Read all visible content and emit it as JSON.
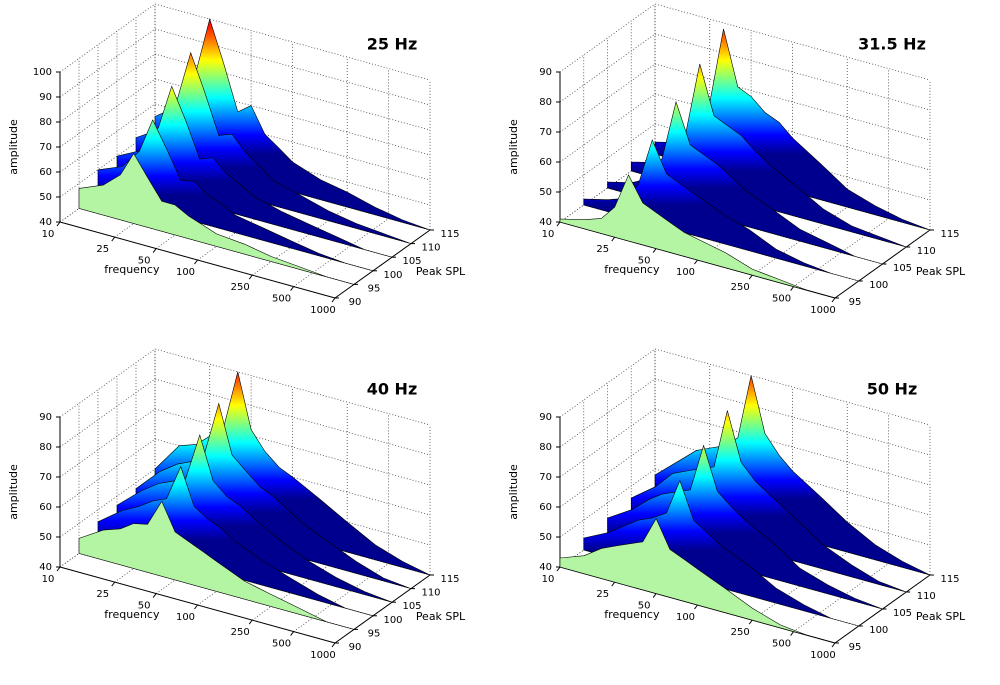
{
  "chart_data": [
    {
      "type": "waterfall",
      "title": "25 Hz",
      "xlabel": "frequency",
      "ylabel": "Peak SPL",
      "zlabel": "amplitude",
      "xscale": "log",
      "xlim": [
        10,
        1000
      ],
      "xticks": [
        10,
        25,
        50,
        100,
        250,
        500,
        1000
      ],
      "ylim": [
        90,
        115
      ],
      "yticks": [
        90,
        95,
        100,
        105,
        110,
        115
      ],
      "zlim": [
        40,
        100
      ],
      "zticks": [
        40,
        50,
        60,
        70,
        80,
        90,
        100
      ],
      "grid": true,
      "front_color": "#b3f5a3",
      "x": [
        10,
        15,
        20,
        25,
        31.5,
        40,
        50,
        63,
        80,
        100,
        160,
        250,
        400,
        630,
        1000
      ],
      "slices": [
        {
          "spl": 115,
          "values": [
            55,
            62,
            78,
            100,
            84,
            66,
            70,
            60,
            56,
            52,
            48,
            46,
            43,
            41,
            40
          ]
        },
        {
          "spl": 110,
          "values": [
            52,
            58,
            72,
            92,
            78,
            62,
            64,
            58,
            54,
            50,
            47,
            44,
            42,
            41,
            40
          ]
        },
        {
          "spl": 105,
          "values": [
            50,
            55,
            66,
            84,
            72,
            58,
            60,
            55,
            52,
            49,
            46,
            44,
            42,
            40,
            40
          ]
        },
        {
          "spl": 100,
          "values": [
            50,
            54,
            62,
            76,
            66,
            55,
            56,
            52,
            50,
            47,
            45,
            43,
            41,
            40,
            40
          ]
        },
        {
          "spl": 95,
          "values": [
            48,
            52,
            58,
            68,
            60,
            52,
            52,
            49,
            47,
            45,
            44,
            42,
            41,
            40,
            40
          ]
        }
      ]
    },
    {
      "type": "waterfall",
      "title": "31.5 Hz",
      "xlabel": "frequency",
      "ylabel": "Peak SPL",
      "zlabel": "amplitude",
      "xscale": "log",
      "xlim": [
        10,
        1000
      ],
      "xticks": [
        10,
        25,
        50,
        100,
        250,
        500,
        1000
      ],
      "ylim": [
        95,
        115
      ],
      "yticks": [
        95,
        100,
        105,
        110,
        115
      ],
      "zlim": [
        40,
        90
      ],
      "zticks": [
        40,
        50,
        60,
        70,
        80,
        90
      ],
      "grid": true,
      "front_color": "#b3f5a3",
      "x": [
        10,
        15,
        20,
        25,
        31.5,
        40,
        50,
        63,
        80,
        100,
        160,
        250,
        400,
        630,
        1000
      ],
      "slices": [
        {
          "spl": 115,
          "values": [
            44,
            46,
            50,
            62,
            88,
            70,
            68,
            64,
            62,
            58,
            52,
            46,
            43,
            41,
            40
          ]
        },
        {
          "spl": 110,
          "values": [
            43,
            45,
            48,
            58,
            82,
            66,
            64,
            62,
            58,
            55,
            50,
            45,
            42,
            41,
            40
          ]
        },
        {
          "spl": 105,
          "values": [
            42,
            44,
            47,
            55,
            75,
            62,
            60,
            58,
            55,
            52,
            48,
            44,
            42,
            40,
            40
          ]
        },
        {
          "spl": 100,
          "values": [
            42,
            44,
            46,
            52,
            68,
            58,
            56,
            54,
            52,
            50,
            47,
            43,
            41,
            40,
            40
          ]
        },
        {
          "spl": 95,
          "values": [
            41,
            43,
            45,
            50,
            62,
            54,
            52,
            50,
            48,
            47,
            45,
            42,
            41,
            40,
            40
          ]
        }
      ]
    },
    {
      "type": "waterfall",
      "title": "40 Hz",
      "xlabel": "frequency",
      "ylabel": "Peak SPL",
      "zlabel": "amplitude",
      "xscale": "log",
      "xlim": [
        10,
        1000
      ],
      "xticks": [
        10,
        25,
        50,
        100,
        250,
        500,
        1000
      ],
      "ylim": [
        90,
        115
      ],
      "yticks": [
        90,
        95,
        100,
        105,
        110,
        115
      ],
      "zlim": [
        40,
        90
      ],
      "zticks": [
        40,
        50,
        60,
        70,
        80,
        90
      ],
      "grid": true,
      "front_color": "#b3f5a3",
      "x": [
        10,
        15,
        20,
        25,
        31.5,
        40,
        50,
        63,
        80,
        100,
        160,
        250,
        400,
        630,
        1000
      ],
      "slices": [
        {
          "spl": 115,
          "values": [
            50,
            60,
            62,
            66,
            70,
            90,
            72,
            66,
            62,
            60,
            55,
            50,
            45,
            42,
            40
          ]
        },
        {
          "spl": 110,
          "values": [
            48,
            56,
            60,
            62,
            66,
            84,
            68,
            64,
            60,
            58,
            52,
            48,
            44,
            41,
            40
          ]
        },
        {
          "spl": 105,
          "values": [
            47,
            54,
            58,
            60,
            62,
            78,
            64,
            60,
            58,
            55,
            50,
            46,
            43,
            41,
            40
          ]
        },
        {
          "spl": 100,
          "values": [
            46,
            52,
            55,
            58,
            60,
            72,
            60,
            57,
            55,
            52,
            48,
            45,
            42,
            40,
            40
          ]
        },
        {
          "spl": 95,
          "values": [
            45,
            50,
            52,
            55,
            56,
            65,
            56,
            54,
            52,
            50,
            46,
            44,
            42,
            40,
            40
          ]
        }
      ]
    },
    {
      "type": "waterfall",
      "title": "50 Hz",
      "xlabel": "frequency",
      "ylabel": "Peak SPL",
      "zlabel": "amplitude",
      "xscale": "log",
      "xlim": [
        10,
        1000
      ],
      "xticks": [
        10,
        25,
        50,
        100,
        250,
        500,
        1000
      ],
      "ylim": [
        95,
        115
      ],
      "yticks": [
        95,
        100,
        105,
        110,
        115
      ],
      "zlim": [
        40,
        90
      ],
      "zticks": [
        40,
        50,
        60,
        70,
        80,
        90
      ],
      "grid": true,
      "front_color": "#b3f5a3",
      "x": [
        10,
        15,
        20,
        25,
        31.5,
        40,
        50,
        63,
        80,
        100,
        160,
        250,
        400,
        630,
        1000
      ],
      "slices": [
        {
          "spl": 115,
          "values": [
            48,
            55,
            60,
            62,
            64,
            68,
            90,
            72,
            66,
            62,
            56,
            50,
            45,
            42,
            40
          ]
        },
        {
          "spl": 110,
          "values": [
            46,
            52,
            58,
            60,
            62,
            64,
            84,
            68,
            63,
            60,
            54,
            48,
            44,
            41,
            40
          ]
        },
        {
          "spl": 105,
          "values": [
            45,
            50,
            55,
            58,
            60,
            62,
            78,
            64,
            60,
            57,
            52,
            46,
            43,
            41,
            40
          ]
        },
        {
          "spl": 100,
          "values": [
            44,
            48,
            52,
            55,
            57,
            60,
            72,
            60,
            57,
            54,
            50,
            45,
            42,
            40,
            40
          ]
        },
        {
          "spl": 95,
          "values": [
            43,
            46,
            50,
            52,
            54,
            56,
            65,
            56,
            54,
            52,
            48,
            44,
            41,
            40,
            40
          ]
        }
      ]
    }
  ]
}
